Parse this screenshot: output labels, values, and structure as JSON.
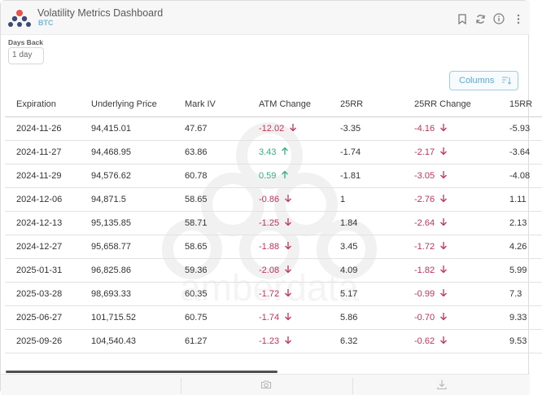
{
  "app": {
    "title": "Volatility Metrics Dashboard",
    "subtitle": "BTC"
  },
  "header_icons": [
    "bookmark-icon",
    "refresh-icon",
    "info-icon",
    "more-icon"
  ],
  "controls": {
    "days_back_label": "Days Back",
    "days_back_value": "1 day",
    "columns_label": "Columns"
  },
  "table": {
    "columns": [
      "Expiration",
      "Underlying Price",
      "Mark IV",
      "ATM Change",
      "25RR",
      "25RR Change",
      "15RR"
    ],
    "rows": [
      {
        "expiration": "2024-11-26",
        "underlying_price": "94,415.01",
        "mark_iv": "47.67",
        "atm_change": "-12.02",
        "atm_dir": "down",
        "rr25": "-3.35",
        "rr25_change": "-4.16",
        "rr25_dir": "down",
        "rr15": "-5.93"
      },
      {
        "expiration": "2024-11-27",
        "underlying_price": "94,468.95",
        "mark_iv": "63.86",
        "atm_change": "3.43",
        "atm_dir": "up",
        "rr25": "-1.74",
        "rr25_change": "-2.17",
        "rr25_dir": "down",
        "rr15": "-3.64"
      },
      {
        "expiration": "2024-11-29",
        "underlying_price": "94,576.62",
        "mark_iv": "60.78",
        "atm_change": "0.59",
        "atm_dir": "up",
        "rr25": "-1.81",
        "rr25_change": "-3.05",
        "rr25_dir": "down",
        "rr15": "-4.08"
      },
      {
        "expiration": "2024-12-06",
        "underlying_price": "94,871.5",
        "mark_iv": "58.65",
        "atm_change": "-0.86",
        "atm_dir": "down",
        "rr25": "1",
        "rr25_change": "-2.76",
        "rr25_dir": "down",
        "rr15": "1.11"
      },
      {
        "expiration": "2024-12-13",
        "underlying_price": "95,135.85",
        "mark_iv": "58.71",
        "atm_change": "-1.25",
        "atm_dir": "down",
        "rr25": "1.84",
        "rr25_change": "-2.64",
        "rr25_dir": "down",
        "rr15": "2.13"
      },
      {
        "expiration": "2024-12-27",
        "underlying_price": "95,658.77",
        "mark_iv": "58.65",
        "atm_change": "-1.88",
        "atm_dir": "down",
        "rr25": "3.45",
        "rr25_change": "-1.72",
        "rr25_dir": "down",
        "rr15": "4.26"
      },
      {
        "expiration": "2025-01-31",
        "underlying_price": "96,825.86",
        "mark_iv": "59.36",
        "atm_change": "-2.08",
        "atm_dir": "down",
        "rr25": "4.09",
        "rr25_change": "-1.82",
        "rr25_dir": "down",
        "rr15": "5.99"
      },
      {
        "expiration": "2025-03-28",
        "underlying_price": "98,693.33",
        "mark_iv": "60.35",
        "atm_change": "-1.72",
        "atm_dir": "down",
        "rr25": "5.17",
        "rr25_change": "-0.99",
        "rr25_dir": "down",
        "rr15": "7.3"
      },
      {
        "expiration": "2025-06-27",
        "underlying_price": "101,715.52",
        "mark_iv": "60.75",
        "atm_change": "-1.74",
        "atm_dir": "down",
        "rr25": "5.86",
        "rr25_change": "-0.70",
        "rr25_dir": "down",
        "rr15": "9.33"
      },
      {
        "expiration": "2025-09-26",
        "underlying_price": "104,540.43",
        "mark_iv": "61.27",
        "atm_change": "-1.23",
        "atm_dir": "down",
        "rr25": "6.32",
        "rr25_change": "-0.62",
        "rr25_dir": "down",
        "rr15": "9.53"
      }
    ]
  },
  "watermark": {
    "text": "amberdata"
  },
  "footer_icons": [
    "camera-icon",
    "download-icon"
  ],
  "colors": {
    "negative": "#c23356",
    "positive": "#2fb179",
    "accent": "#5fa8cf"
  }
}
